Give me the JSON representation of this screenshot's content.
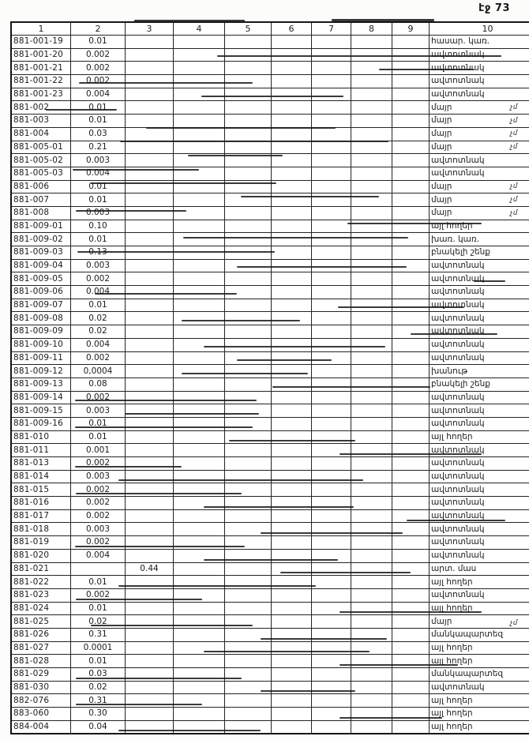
{
  "page": {
    "label": "էջ 73"
  },
  "table": {
    "headers": [
      "1",
      "2",
      "3",
      "4",
      "5",
      "6",
      "7",
      "8",
      "9",
      "10"
    ],
    "rows": [
      {
        "code": "881-001-19",
        "area2": "0.01",
        "area3": "",
        "purpose": "հասար. կառ.",
        "note": ""
      },
      {
        "code": "881-001-20",
        "area2": "0.002",
        "area3": "",
        "purpose": "ավտոտնակ",
        "note": ""
      },
      {
        "code": "881-001-21",
        "area2": "0.002",
        "area3": "",
        "purpose": "ավտոտնակ",
        "note": ""
      },
      {
        "code": "881-001-22",
        "area2": "0.002",
        "area3": "",
        "purpose": "ավտոտնակ",
        "note": ""
      },
      {
        "code": "881-001-23",
        "area2": "0.004",
        "area3": "",
        "purpose": "ավտոտնակ",
        "note": ""
      },
      {
        "code": "881-002",
        "area2": "0.01",
        "area3": "",
        "purpose": "մայր",
        "note": "չմ"
      },
      {
        "code": "881-003",
        "area2": "0.01",
        "area3": "",
        "purpose": "մայր",
        "note": "չմ"
      },
      {
        "code": "881-004",
        "area2": "0.03",
        "area3": "",
        "purpose": "մայր",
        "note": "չմ"
      },
      {
        "code": "881-005-01",
        "area2": "0.21",
        "area3": "",
        "purpose": "մայր",
        "note": "չմ"
      },
      {
        "code": "881-005-02",
        "area2": "0.003",
        "area3": "",
        "purpose": "ավտոտնակ",
        "note": ""
      },
      {
        "code": "881-005-03",
        "area2": "0.004",
        "area3": "",
        "purpose": "ավտոտնակ",
        "note": ""
      },
      {
        "code": "881-006",
        "area2": "0.01",
        "area3": "",
        "purpose": "մայր",
        "note": "չմ"
      },
      {
        "code": "881-007",
        "area2": "0.01",
        "area3": "",
        "purpose": "մայր",
        "note": "չմ"
      },
      {
        "code": "881-008",
        "area2": "0.003",
        "area3": "",
        "purpose": "մայր",
        "note": "չմ"
      },
      {
        "code": "881-009-01",
        "area2": "0.10",
        "area3": "",
        "purpose": "այլ հողեր",
        "note": ""
      },
      {
        "code": "881-009-02",
        "area2": "0.01",
        "area3": "",
        "purpose": "խառ. կառ.",
        "note": ""
      },
      {
        "code": "881-009-03",
        "area2": "0.13",
        "area3": "",
        "purpose": "բնակելի շենք",
        "note": ""
      },
      {
        "code": "881-009-04",
        "area2": "0.003",
        "area3": "",
        "purpose": "ավտոտնակ",
        "note": ""
      },
      {
        "code": "881-009-05",
        "area2": "0.002",
        "area3": "",
        "purpose": "ավտոտնակ",
        "note": ""
      },
      {
        "code": "881-009-06",
        "area2": "0.004",
        "area3": "",
        "purpose": "ավտոտնակ",
        "note": ""
      },
      {
        "code": "881-009-07",
        "area2": "0.01",
        "area3": "",
        "purpose": "ավտոտնակ",
        "note": ""
      },
      {
        "code": "881-009-08",
        "area2": "0.02",
        "area3": "",
        "purpose": "ավտոտնակ",
        "note": ""
      },
      {
        "code": "881-009-09",
        "area2": "0.02",
        "area3": "",
        "purpose": "ավտոտնակ",
        "note": ""
      },
      {
        "code": "881-009-10",
        "area2": "0.004",
        "area3": "",
        "purpose": "ավտոտնակ",
        "note": ""
      },
      {
        "code": "881-009-11",
        "area2": "0.002",
        "area3": "",
        "purpose": "ավտոտնակ",
        "note": ""
      },
      {
        "code": "881-009-12",
        "area2": "0,0004",
        "area3": "",
        "purpose": "խանութ",
        "note": ""
      },
      {
        "code": "881-009-13",
        "area2": "0.08",
        "area3": "",
        "purpose": "բնակելի շենք",
        "note": ""
      },
      {
        "code": "881-009-14",
        "area2": "0.002",
        "area3": "",
        "purpose": "ավտոտնակ",
        "note": ""
      },
      {
        "code": "881-009-15",
        "area2": "0.003",
        "area3": "",
        "purpose": "ավտոտնակ",
        "note": ""
      },
      {
        "code": "881-009-16",
        "area2": "0.01",
        "area3": "",
        "purpose": "ավտոտնակ",
        "note": ""
      },
      {
        "code": "881-010",
        "area2": "0.01",
        "area3": "",
        "purpose": "այլ հողեր",
        "note": ""
      },
      {
        "code": "881-011",
        "area2": "0.001",
        "area3": "",
        "purpose": "ավտոտնակ",
        "note": ""
      },
      {
        "code": "881-013",
        "area2": "0.002",
        "area3": "",
        "purpose": "ավտոտնակ",
        "note": ""
      },
      {
        "code": "881-014",
        "area2": "0.003",
        "area3": "",
        "purpose": "ավտոտնակ",
        "note": ""
      },
      {
        "code": "881-015",
        "area2": "0.002",
        "area3": "",
        "purpose": "ավտոտնակ",
        "note": ""
      },
      {
        "code": "881-016",
        "area2": "0.002",
        "area3": "",
        "purpose": "ավտոտնակ",
        "note": ""
      },
      {
        "code": "881-017",
        "area2": "0.002",
        "area3": "",
        "purpose": "ավտոտնակ",
        "note": ""
      },
      {
        "code": "881-018",
        "area2": "0.003",
        "area3": "",
        "purpose": "ավտոտնակ",
        "note": ""
      },
      {
        "code": "881-019",
        "area2": "0.002",
        "area3": "",
        "purpose": "ավտոտնակ",
        "note": ""
      },
      {
        "code": "881-020",
        "area2": "0.004",
        "area3": "",
        "purpose": "ավտոտնակ",
        "note": ""
      },
      {
        "code": "881-021",
        "area2": "",
        "area3": "0.44",
        "purpose": "արտ. մաս",
        "note": ""
      },
      {
        "code": "881-022",
        "area2": "0.01",
        "area3": "",
        "purpose": "այլ հողեր",
        "note": ""
      },
      {
        "code": "881-023",
        "area2": "0.002",
        "area3": "",
        "purpose": "ավտոտնակ",
        "note": ""
      },
      {
        "code": "881-024",
        "area2": "0.01",
        "area3": "",
        "purpose": "այլ հողեր",
        "note": ""
      },
      {
        "code": "881-025",
        "area2": "0.02",
        "area3": "",
        "purpose": "մայր",
        "note": "չմ"
      },
      {
        "code": "881-026",
        "area2": "0.31",
        "area3": "",
        "purpose": "մանկապարտեզ",
        "note": ""
      },
      {
        "code": "881-027",
        "area2": "0.0001",
        "area3": "",
        "purpose": "այլ հողեր",
        "note": ""
      },
      {
        "code": "881-028",
        "area2": "0.01",
        "area3": "",
        "purpose": "այլ հողեր",
        "note": ""
      },
      {
        "code": "881-029",
        "area2": "0.03",
        "area3": "",
        "purpose": "մանկապարտեզ",
        "note": ""
      },
      {
        "code": "881-030",
        "area2": "0.02",
        "area3": "",
        "purpose": "ավտոտնակ",
        "note": ""
      },
      {
        "code": "882-076",
        "area2": "0.31",
        "area3": "",
        "purpose": "այլ հողեր",
        "note": ""
      },
      {
        "code": "883-060",
        "area2": "0.30",
        "area3": "",
        "purpose": "այլ հողեր",
        "note": ""
      },
      {
        "code": "884-004",
        "area2": "0.04",
        "area3": "",
        "purpose": "այլ հողեր",
        "note": ""
      }
    ]
  }
}
